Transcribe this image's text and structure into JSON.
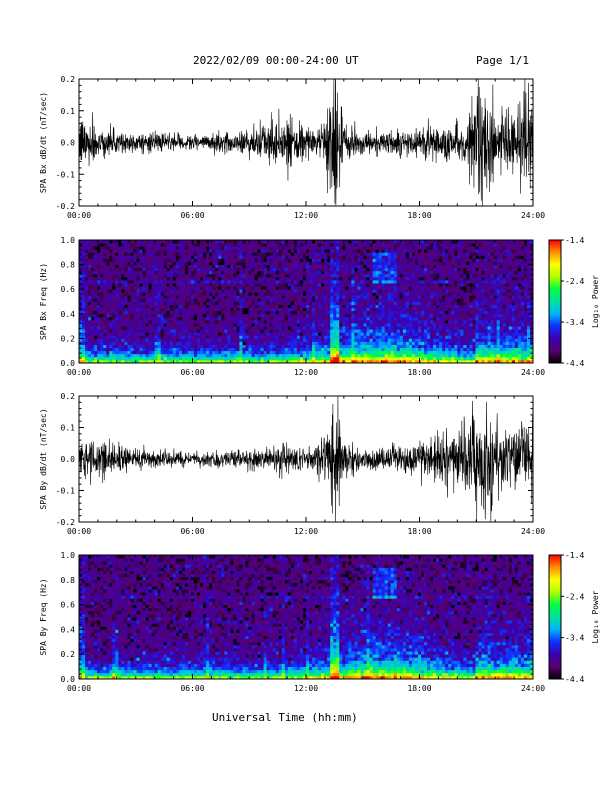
{
  "header": {
    "title": "2022/02/09  00:00-24:00 UT",
    "page": "Page 1/1"
  },
  "footer": {
    "xlabel": "Universal Time (hh:mm)"
  },
  "chart_data": [
    {
      "type": "line",
      "ylabel": "SPA Bx dB/dt (nT/sec)",
      "xlim": [
        0,
        24
      ],
      "ylim": [
        -0.2,
        0.2
      ],
      "xticks": [
        "00:00",
        "06:00",
        "12:00",
        "18:00",
        "24:00"
      ],
      "yticks": [
        "-0.2",
        "-0.1",
        "0.0",
        "0.1",
        "0.2"
      ],
      "envelope": {
        "hours": [
          0,
          0.5,
          1,
          2,
          3,
          4,
          5,
          6,
          7,
          8,
          9,
          10,
          10.5,
          11,
          11.5,
          12,
          12.5,
          13,
          13.4,
          13.6,
          14,
          15,
          16,
          17,
          18,
          19,
          20,
          20.5,
          21,
          21.5,
          22,
          23,
          24
        ],
        "amplitude": [
          0.09,
          0.08,
          0.06,
          0.04,
          0.035,
          0.03,
          0.028,
          0.025,
          0.03,
          0.035,
          0.045,
          0.06,
          0.08,
          0.07,
          0.06,
          0.04,
          0.05,
          0.08,
          0.21,
          0.21,
          0.06,
          0.04,
          0.04,
          0.045,
          0.05,
          0.06,
          0.07,
          0.09,
          0.2,
          0.21,
          0.1,
          0.13,
          0.17
        ]
      }
    },
    {
      "type": "heatmap",
      "ylabel": "SPA Bx Freq (Hz)",
      "colorbar_label": "Log₁₀ Power",
      "xlim": [
        0,
        24
      ],
      "ylim": [
        0,
        1.0
      ],
      "clim": [
        -4.4,
        -1.4
      ],
      "xticks": [
        "00:00",
        "06:00",
        "12:00",
        "18:00",
        "24:00"
      ],
      "yticks": [
        "0.0",
        "0.2",
        "0.4",
        "0.6",
        "0.8",
        "1.0"
      ],
      "cticks": [
        "-1.4",
        "-2.4",
        "-3.4",
        "-4.4"
      ],
      "colormap": [
        "#000000",
        "#5a0070",
        "#3a00b0",
        "#1030ff",
        "#00b4ff",
        "#00e0a0",
        "#00ff40",
        "#b0ff00",
        "#ffff00",
        "#ff9000",
        "#ff0000"
      ]
    },
    {
      "type": "line",
      "ylabel": "SPA By dB/dt (nT/sec)",
      "xlim": [
        0,
        24
      ],
      "ylim": [
        -0.2,
        0.2
      ],
      "xticks": [
        "00:00",
        "06:00",
        "12:00",
        "18:00",
        "24:00"
      ],
      "yticks": [
        "-0.2",
        "-0.1",
        "0.0",
        "0.1",
        "0.2"
      ],
      "envelope": {
        "hours": [
          0,
          0.5,
          1,
          2,
          3,
          4,
          5,
          6,
          7,
          8,
          9,
          10,
          10.5,
          11,
          11.5,
          12,
          12.5,
          13,
          13.4,
          13.6,
          14,
          15,
          16,
          17,
          18,
          19,
          20,
          20.5,
          21,
          21.5,
          22,
          23,
          24
        ],
        "amplitude": [
          0.05,
          0.06,
          0.07,
          0.04,
          0.035,
          0.03,
          0.025,
          0.022,
          0.025,
          0.03,
          0.035,
          0.045,
          0.05,
          0.05,
          0.05,
          0.04,
          0.05,
          0.08,
          0.21,
          0.21,
          0.05,
          0.035,
          0.04,
          0.05,
          0.06,
          0.07,
          0.09,
          0.12,
          0.21,
          0.2,
          0.13,
          0.12,
          0.14
        ]
      }
    },
    {
      "type": "heatmap",
      "ylabel": "SPA By Freq (Hz)",
      "colorbar_label": "Log₁₀ Power",
      "xlim": [
        0,
        24
      ],
      "ylim": [
        0,
        1.0
      ],
      "clim": [
        -4.4,
        -1.4
      ],
      "xticks": [
        "00:00",
        "06:00",
        "12:00",
        "18:00",
        "24:00"
      ],
      "yticks": [
        "0.0",
        "0.2",
        "0.4",
        "0.6",
        "0.8",
        "1.0"
      ],
      "cticks": [
        "-1.4",
        "-2.4",
        "-3.4",
        "-4.4"
      ],
      "colormap": [
        "#000000",
        "#5a0070",
        "#3a00b0",
        "#1030ff",
        "#00b4ff",
        "#00e0a0",
        "#00ff40",
        "#b0ff00",
        "#ffff00",
        "#ff9000",
        "#ff0000"
      ]
    }
  ]
}
